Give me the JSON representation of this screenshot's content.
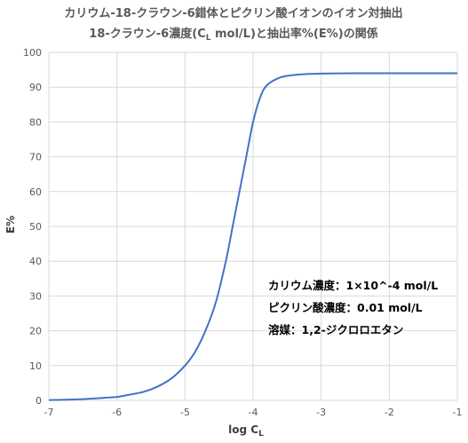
{
  "chart_data": {
    "type": "line",
    "title": "カリウム-18-クラウン-6錯体とピクリン酸イオンのイオン対抽出",
    "subtitle": "18-クラウン-6濃度(C",
    "subtitle_sub": "L",
    "subtitle_tail": " mol/L)と抽出率%(E%)の関係",
    "xlabel": "log C",
    "xlabel_sub": "L",
    "ylabel": "E%",
    "xlim": [
      -7,
      -1
    ],
    "ylim": [
      0,
      100
    ],
    "x_ticks": [
      -7,
      -6,
      -5,
      -4,
      -3,
      -2,
      -1
    ],
    "y_ticks": [
      0,
      10,
      20,
      30,
      40,
      50,
      60,
      70,
      80,
      90,
      100
    ],
    "grid": true,
    "series": [
      {
        "color": "#4472c4",
        "x": [
          -7.0,
          -6.6,
          -6.3,
          -6.0,
          -5.8,
          -5.6,
          -5.4,
          -5.2,
          -5.0,
          -4.85,
          -4.7,
          -4.55,
          -4.4,
          -4.3,
          -4.2,
          -4.1,
          -4.0,
          -3.9,
          -3.8,
          -3.6,
          -3.4,
          -3.2,
          -3.0,
          -2.5,
          -2.0,
          -1.5,
          -1.0
        ],
        "y": [
          0.1,
          0.3,
          0.6,
          1.0,
          1.7,
          2.5,
          4.0,
          6.3,
          10.0,
          14.0,
          20.0,
          28.0,
          40.0,
          50.0,
          60.0,
          70.0,
          80.0,
          86.8,
          90.5,
          92.8,
          93.5,
          93.8,
          93.9,
          94.0,
          94.0,
          94.0,
          94.0
        ]
      }
    ],
    "annotations": [
      "カリウム濃度：1×10^-4 mol/L",
      "ピクリン酸濃度：0.01 mol/L",
      "溶媒：1,2-ジクロロエタン"
    ]
  }
}
